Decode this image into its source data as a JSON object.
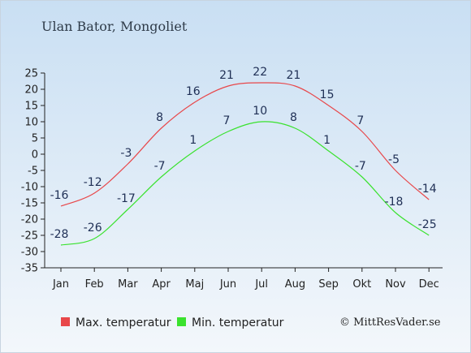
{
  "page": {
    "title": "Ulan Bator, Mongoliet",
    "copyright": "© MittResVader.se"
  },
  "colors": {
    "max": "#e8474a",
    "min": "#3ae22e",
    "axis": "#222222"
  },
  "chart_data": {
    "type": "line",
    "title": "Ulan Bator, Mongoliet",
    "categories": [
      "Jan",
      "Feb",
      "Mar",
      "Apr",
      "Maj",
      "Jun",
      "Jul",
      "Aug",
      "Sep",
      "Okt",
      "Nov",
      "Dec"
    ],
    "ylim": [
      -35,
      25
    ],
    "yticks": [
      25,
      20,
      15,
      10,
      5,
      0,
      -5,
      -10,
      -15,
      -20,
      -25,
      -30,
      -35
    ],
    "grid": false,
    "legend_position": "bottom",
    "series": [
      {
        "name": "Max. temperatur",
        "color": "#e8474a",
        "values": [
          -16,
          -12,
          -3,
          8,
          16,
          21,
          22,
          21,
          15,
          7,
          -5,
          -14
        ]
      },
      {
        "name": "Min. temperatur",
        "color": "#3ae22e",
        "values": [
          -28,
          -26,
          -17,
          -7,
          1,
          7,
          10,
          8,
          1,
          -7,
          -18,
          -25
        ]
      }
    ]
  }
}
